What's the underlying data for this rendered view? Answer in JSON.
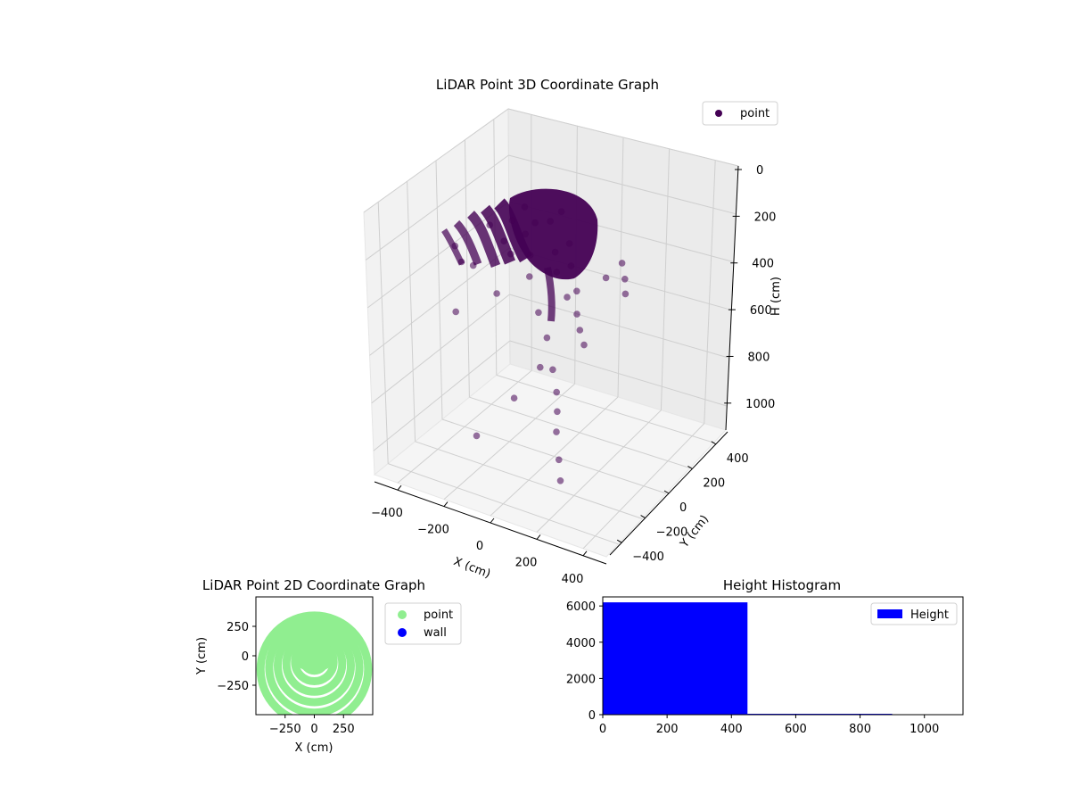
{
  "chart_data": [
    {
      "type": "scatter3d",
      "title": "LiDAR Point 3D Coordinate Graph",
      "xlabel": "X (cm)",
      "ylabel": "Y (cm)",
      "zlabel": "H (cm)",
      "xticks": [
        -400,
        -200,
        0,
        200,
        400
      ],
      "yticks": [
        -400,
        -200,
        0,
        200,
        400
      ],
      "zticks": [
        0,
        200,
        400,
        600,
        800,
        1000
      ],
      "xlim": [
        -500,
        500
      ],
      "ylim": [
        -500,
        500
      ],
      "zlim": [
        0,
        1100
      ],
      "z_inverted": true,
      "grid": true,
      "legend": {
        "placement": "top-right",
        "entries": [
          {
            "label": "point",
            "color": "#440154"
          }
        ]
      },
      "dense_cluster": {
        "description_free": true,
        "color": "#440154"
      },
      "sparse_points": [
        [
          -480,
          60,
          450
        ],
        [
          -470,
          90,
          520
        ],
        [
          -430,
          -20,
          650
        ],
        [
          -460,
          160,
          560
        ],
        [
          -430,
          230,
          420
        ],
        [
          -380,
          250,
          470
        ],
        [
          -350,
          260,
          380
        ],
        [
          -320,
          300,
          330
        ],
        [
          -310,
          180,
          460
        ],
        [
          -270,
          220,
          380
        ],
        [
          -240,
          240,
          330
        ],
        [
          -220,
          170,
          420
        ],
        [
          -200,
          130,
          480
        ],
        [
          -180,
          250,
          300
        ],
        [
          -150,
          280,
          260
        ],
        [
          -130,
          200,
          380
        ],
        [
          -100,
          160,
          430
        ],
        [
          -80,
          220,
          330
        ],
        [
          -50,
          180,
          390
        ],
        [
          -20,
          100,
          470
        ],
        [
          10,
          120,
          440
        ],
        [
          40,
          70,
          500
        ],
        [
          70,
          40,
          540
        ],
        [
          100,
          20,
          580
        ],
        [
          -120,
          60,
          560
        ],
        [
          -60,
          20,
          620
        ],
        [
          0,
          -40,
          700
        ],
        [
          40,
          -80,
          760
        ],
        [
          60,
          -110,
          820
        ],
        [
          80,
          -150,
          880
        ],
        [
          120,
          -200,
          960
        ],
        [
          150,
          -240,
          1020
        ],
        [
          -200,
          -260,
          950
        ],
        [
          -120,
          -120,
          830
        ],
        [
          -60,
          -30,
          720
        ],
        [
          130,
          130,
          330
        ],
        [
          170,
          180,
          270
        ],
        [
          200,
          150,
          310
        ],
        [
          220,
          120,
          350
        ],
        [
          -300,
          60,
          560
        ]
      ],
      "color": "#440154"
    },
    {
      "type": "scatter",
      "title": "LiDAR Point 2D Coordinate Graph",
      "xlabel": "X (cm)",
      "ylabel": "Y (cm)",
      "xticks": [
        -250,
        0,
        250
      ],
      "yticks": [
        250,
        0,
        -250
      ],
      "xlim": [
        -500,
        500
      ],
      "ylim": [
        -500,
        500
      ],
      "legend": {
        "placement": "outside-right",
        "entries": [
          {
            "label": "point",
            "color": "#90ee90"
          },
          {
            "label": "wall",
            "color": "#0000ff"
          }
        ]
      },
      "series": [
        {
          "name": "point",
          "color": "#90ee90"
        },
        {
          "name": "wall",
          "color": "#0000ff"
        }
      ],
      "rings": [
        {
          "radius": 100,
          "start_deg": 0,
          "end_deg": 180
        },
        {
          "radius": 180,
          "start_deg": 10,
          "end_deg": 170
        },
        {
          "radius": 260,
          "start_deg": 20,
          "end_deg": 165
        },
        {
          "radius": 340,
          "start_deg": 25,
          "end_deg": 160
        },
        {
          "radius": 420,
          "start_deg": 30,
          "end_deg": 155
        },
        {
          "radius": 500,
          "start_deg": 35,
          "end_deg": 150
        }
      ]
    },
    {
      "type": "bar",
      "title": "Height Histogram",
      "xticks": [
        0,
        200,
        400,
        600,
        800,
        1000
      ],
      "yticks": [
        0,
        2000,
        4000,
        6000
      ],
      "xlim": [
        0,
        1120
      ],
      "ylim": [
        0,
        6500
      ],
      "legend": {
        "placement": "top-right",
        "entries": [
          {
            "label": "Height",
            "color": "#0000ff"
          }
        ]
      },
      "bins": [
        {
          "x0": 0,
          "x1": 450,
          "value": 6200
        },
        {
          "x0": 450,
          "x1": 900,
          "value": 50
        },
        {
          "x0": 900,
          "x1": 1120,
          "value": 0
        }
      ],
      "color": "#0000ff"
    }
  ]
}
